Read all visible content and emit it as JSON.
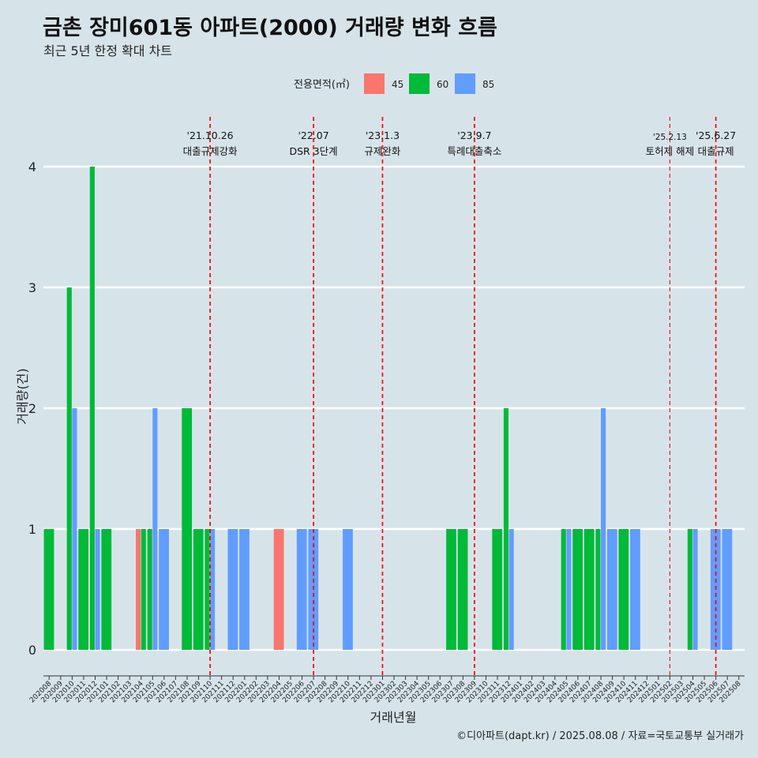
{
  "title": "금촌 장미601동 아파트(2000) 거래량 변화 흐름",
  "subtitle": "최근 5년 한정 확대 차트",
  "caption": "©디아파트(dapt.kr) / 2025.08.08 / 자료=국토교통부 실거래가",
  "chart_data": {
    "type": "bar",
    "xlabel": "거래년월",
    "ylabel": "거래량(건)",
    "ylim": [
      0,
      4
    ],
    "yticks": [
      0,
      1,
      2,
      3,
      4
    ],
    "grid": true,
    "legend": {
      "title": "전용면적(㎡)",
      "position": "top",
      "entries": [
        {
          "name": "45",
          "color": "#f8766d"
        },
        {
          "name": "60",
          "color": "#00ba38"
        },
        {
          "name": "85",
          "color": "#619cff"
        }
      ]
    },
    "categories": [
      "202008",
      "202009",
      "202010",
      "202011",
      "202012",
      "202101",
      "202102",
      "202103",
      "202104",
      "202105",
      "202106",
      "202107",
      "202108",
      "202109",
      "202110",
      "202111",
      "202112",
      "202201",
      "202202",
      "202203",
      "202204",
      "202205",
      "202206",
      "202207",
      "202208",
      "202209",
      "202210",
      "202211",
      "202212",
      "202301",
      "202302",
      "202303",
      "202304",
      "202305",
      "202306",
      "202307",
      "202308",
      "202309",
      "202310",
      "202311",
      "202312",
      "202401",
      "202402",
      "202403",
      "202404",
      "202405",
      "202406",
      "202407",
      "202408",
      "202409",
      "202410",
      "202411",
      "202412",
      "202501",
      "202502",
      "202503",
      "202504",
      "202505",
      "202506",
      "202507",
      "202508"
    ],
    "series": [
      {
        "name": "45",
        "color": "#f8766d",
        "values": [
          0,
          0,
          0,
          0,
          0,
          0,
          0,
          0,
          1,
          0,
          0,
          0,
          0,
          0,
          0,
          0,
          0,
          0,
          0,
          0,
          1,
          0,
          0,
          0,
          0,
          0,
          0,
          0,
          0,
          0,
          0,
          0,
          0,
          0,
          0,
          0,
          0,
          0,
          0,
          0,
          0,
          0,
          0,
          0,
          0,
          0,
          0,
          0,
          0,
          0,
          0,
          0,
          0,
          0,
          0,
          0,
          0,
          0,
          0,
          0,
          0
        ]
      },
      {
        "name": "60",
        "color": "#00ba38",
        "values": [
          1,
          0,
          3,
          1,
          4,
          1,
          0,
          0,
          1,
          1,
          0,
          0,
          2,
          1,
          1,
          0,
          0,
          0,
          0,
          0,
          0,
          0,
          0,
          0,
          0,
          0,
          0,
          0,
          0,
          0,
          0,
          0,
          0,
          0,
          0,
          1,
          1,
          0,
          0,
          1,
          2,
          0,
          0,
          0,
          0,
          1,
          1,
          1,
          1,
          0,
          1,
          0,
          0,
          0,
          0,
          0,
          1,
          0,
          0,
          0,
          0
        ]
      },
      {
        "name": "85",
        "color": "#619cff",
        "values": [
          0,
          0,
          2,
          0,
          1,
          0,
          0,
          0,
          0,
          2,
          1,
          0,
          0,
          0,
          1,
          0,
          1,
          1,
          0,
          0,
          0,
          0,
          1,
          1,
          0,
          0,
          1,
          0,
          0,
          0,
          0,
          0,
          0,
          0,
          0,
          0,
          0,
          0,
          0,
          0,
          1,
          0,
          0,
          0,
          0,
          1,
          0,
          0,
          2,
          1,
          0,
          1,
          0,
          0,
          0,
          0,
          1,
          0,
          1,
          1,
          0
        ]
      }
    ],
    "events": [
      {
        "date": "'21.10.26",
        "label": "대출규제강화",
        "category": "202110"
      },
      {
        "date": "'22.07",
        "label": "DSR 3단계",
        "category": "202207"
      },
      {
        "date": "'23.1.3",
        "label": "규제완화",
        "category": "202301"
      },
      {
        "date": "'23.9.7",
        "label": "특례대출축소",
        "category": "202309"
      },
      {
        "date": "'25.2.13",
        "label": "토허제 해제",
        "category": "202502"
      },
      {
        "date": "'25.6.27",
        "label": "대출규제",
        "category": "202506"
      }
    ]
  }
}
